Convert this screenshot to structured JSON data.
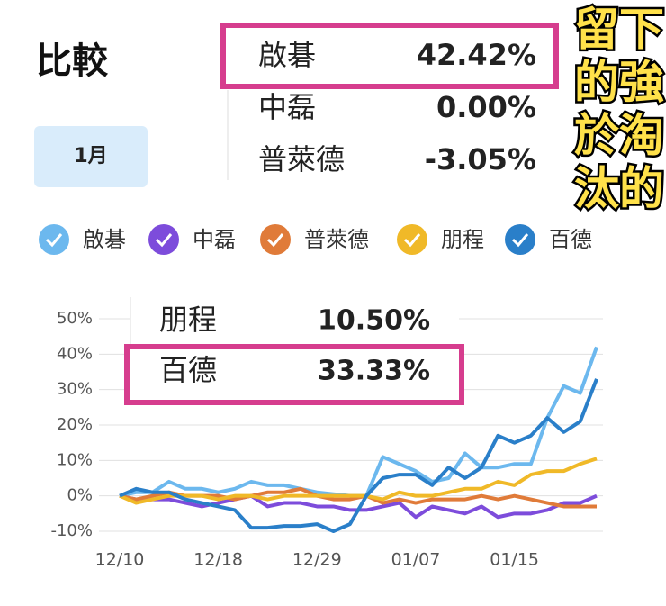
{
  "header": {
    "title": "比較",
    "button": "1月"
  },
  "top_summary": [
    {
      "name": "啟碁",
      "value": "42.42%"
    },
    {
      "name": "中磊",
      "value": "0.00%"
    },
    {
      "name": "普萊德",
      "value": "-3.05%"
    }
  ],
  "overlay_text": [
    "留下",
    "的強",
    "於淘",
    "汰的"
  ],
  "chart_summary": [
    {
      "name": "朋程",
      "value": "10.50%"
    },
    {
      "name": "百德",
      "value": "33.33%"
    }
  ],
  "chart_data": {
    "type": "line",
    "categories": [
      "12/10",
      null,
      null,
      null,
      null,
      null,
      "12/18",
      null,
      null,
      null,
      null,
      null,
      "12/29",
      null,
      null,
      null,
      null,
      null,
      "01/07",
      null,
      null,
      null,
      null,
      null,
      "01/15",
      null,
      null,
      null,
      null,
      null
    ],
    "ylim": [
      -10,
      50
    ],
    "yticks": [
      {
        "value": -10,
        "label": "-10%"
      },
      {
        "value": 0,
        "label": "0%"
      },
      {
        "value": 10,
        "label": "10%"
      },
      {
        "value": 20,
        "label": "20%"
      },
      {
        "value": 30,
        "label": "30%"
      },
      {
        "value": 40,
        "label": "40%"
      },
      {
        "value": 50,
        "label": "50%"
      }
    ],
    "grid": true,
    "series": [
      {
        "name": "啟碁",
        "color": "#6cb8ee",
        "values": [
          0,
          1,
          1,
          4,
          2,
          2,
          1,
          2,
          4,
          3,
          3,
          2,
          1,
          0.5,
          0,
          0,
          11,
          9,
          7,
          4,
          5,
          12,
          8,
          8,
          9,
          9,
          22,
          31,
          29,
          42
        ]
      },
      {
        "name": "中磊",
        "color": "#7d4cdb",
        "values": [
          0,
          -1,
          -1,
          -1,
          -2,
          -3,
          -2,
          -1,
          0,
          -3,
          -2,
          -2,
          -3,
          -3,
          -4,
          -4,
          -3,
          -2,
          -6,
          -3,
          -4,
          -5,
          -3,
          -6,
          -5,
          -5,
          -4,
          -2,
          -2,
          0
        ]
      },
      {
        "name": "普萊德",
        "color": "#e07b39",
        "values": [
          0,
          -1,
          0,
          1,
          0,
          0,
          0,
          -1,
          0,
          1,
          1,
          2,
          0,
          -1,
          -1,
          0,
          -2,
          -1,
          -2,
          -1,
          -1,
          -1,
          0,
          -1,
          0,
          -1,
          -2,
          -3,
          -3,
          -3
        ]
      },
      {
        "name": "朋程",
        "color": "#f0b928",
        "values": [
          0,
          -2,
          -1,
          0,
          0,
          0,
          -1,
          0,
          0,
          -1,
          0,
          0,
          0,
          0,
          0,
          0,
          -1,
          1,
          0,
          0,
          1,
          2,
          2,
          4,
          3,
          6,
          7,
          7,
          9,
          10.5
        ]
      },
      {
        "name": "百德",
        "color": "#2a7fc9",
        "values": [
          0,
          2,
          1,
          1,
          -1,
          -2,
          -3,
          -4,
          -9,
          -9,
          -8.5,
          -8.5,
          -8,
          -10,
          -8,
          0,
          5,
          6,
          6,
          3,
          8,
          5,
          8,
          17,
          15,
          17,
          22,
          18,
          21,
          33
        ]
      }
    ]
  }
}
